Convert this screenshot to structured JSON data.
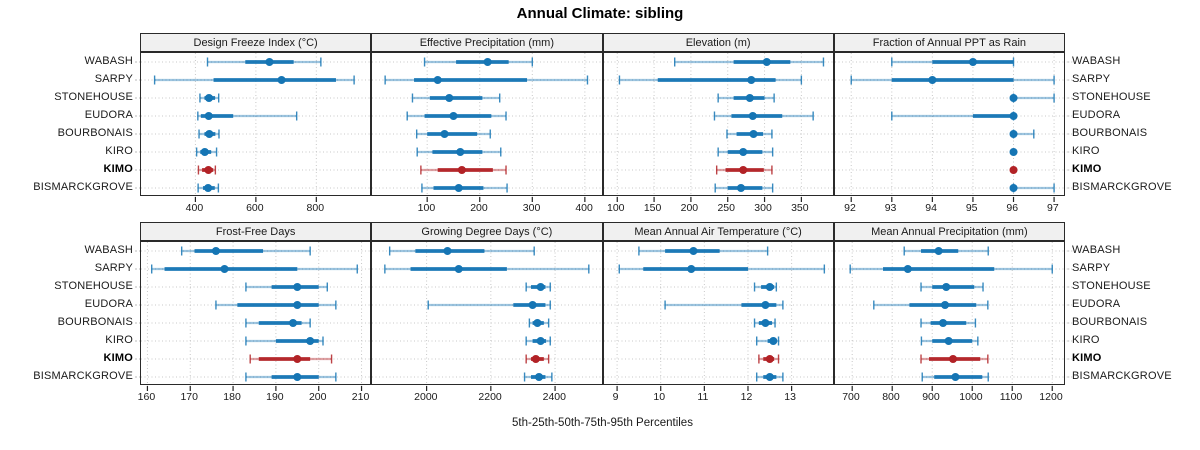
{
  "chart_data": {
    "type": "scatter",
    "subtype": "percentile-interval-dotplot",
    "title": "Annual Climate: sibling",
    "xlabel": "5th-25th-50th-75th-95th Percentiles",
    "percentile_labels": [
      "5th",
      "25th",
      "50th",
      "75th",
      "95th"
    ],
    "categories": [
      "WABASH",
      "SARPY",
      "STONEHOUSE",
      "EUDORA",
      "BOURBONAIS",
      "KIRO",
      "KIMO",
      "BISMARCKGROVE"
    ],
    "highlight_category": "KIMO",
    "legend_position": "none",
    "grid": "dotted",
    "colors": {
      "series": "#1575B4",
      "highlight": "#B22226",
      "strip_bg": "#F0F0F0",
      "grid_line": "#C8C8C8",
      "panel_border": "#2A2A2A",
      "text": "#1A1A1A"
    },
    "panels": [
      {
        "label": "Design Freeze Index (°C)",
        "row": 0,
        "xlim": [
          220,
          985
        ],
        "ticks": [
          400,
          600,
          800
        ],
        "values": {
          "WABASH": [
            440,
            565,
            645,
            725,
            815
          ],
          "SARPY": [
            265,
            460,
            685,
            865,
            925
          ],
          "STONEHOUSE": [
            415,
            430,
            445,
            465,
            477
          ],
          "EUDORA": [
            408,
            418,
            444,
            525,
            735
          ],
          "BOURBONAIS": [
            412,
            430,
            446,
            466,
            478
          ],
          "KIRO": [
            404,
            416,
            431,
            452,
            470
          ],
          "KIMO": [
            410,
            422,
            443,
            459,
            466
          ],
          "BISMARCKGROVE": [
            409,
            425,
            442,
            464,
            476
          ]
        }
      },
      {
        "label": "Effective Precipitation (mm)",
        "row": 0,
        "xlim": [
          -5,
          435
        ],
        "ticks": [
          100,
          200,
          300,
          400
        ],
        "values": {
          "WABASH": [
            95,
            155,
            215,
            255,
            300
          ],
          "SARPY": [
            20,
            75,
            120,
            290,
            405
          ],
          "STONEHOUSE": [
            72,
            105,
            142,
            205,
            238
          ],
          "EUDORA": [
            62,
            95,
            150,
            222,
            250
          ],
          "BOURBONAIS": [
            80,
            100,
            133,
            195,
            220
          ],
          "KIRO": [
            81,
            110,
            163,
            205,
            240
          ],
          "KIMO": [
            88,
            120,
            166,
            225,
            250
          ],
          "BISMARCKGROVE": [
            90,
            112,
            160,
            207,
            252
          ]
        }
      },
      {
        "label": "Elevation (m)",
        "row": 0,
        "xlim": [
          82,
          396
        ],
        "ticks": [
          100,
          150,
          200,
          250,
          300,
          350
        ],
        "values": {
          "WABASH": [
            178,
            258,
            303,
            335,
            380
          ],
          "SARPY": [
            103,
            155,
            282,
            315,
            350
          ],
          "STONEHOUSE": [
            237,
            258,
            280,
            300,
            313
          ],
          "EUDORA": [
            232,
            255,
            284,
            324,
            366
          ],
          "BOURBONAIS": [
            249,
            262,
            285,
            298,
            310
          ],
          "KIRO": [
            237,
            250,
            271,
            297,
            311
          ],
          "KIMO": [
            235,
            247,
            271,
            299,
            310
          ],
          "BISMARCKGROVE": [
            233,
            250,
            268,
            297,
            311
          ]
        }
      },
      {
        "label": "Fraction of Annual PPT as Rain",
        "row": 0,
        "xlim": [
          91.6,
          97.3
        ],
        "ticks": [
          92,
          93,
          94,
          95,
          96,
          97
        ],
        "values": {
          "WABASH": [
            93,
            94,
            95,
            96,
            96
          ],
          "SARPY": [
            92,
            93,
            94,
            96,
            97
          ],
          "STONEHOUSE": [
            96,
            96,
            96,
            96,
            97
          ],
          "EUDORA": [
            93,
            95,
            96,
            96,
            96
          ],
          "BOURBONAIS": [
            96,
            96,
            96,
            96,
            96.5
          ],
          "KIRO": [
            96,
            96,
            96,
            96,
            96
          ],
          "KIMO": [
            96,
            96,
            96,
            96,
            96
          ],
          "BISMARCKGROVE": [
            96,
            96,
            96,
            96,
            97
          ]
        }
      },
      {
        "label": "Frost-Free Days",
        "row": 1,
        "xlim": [
          158.5,
          212.5
        ],
        "ticks": [
          160,
          170,
          180,
          190,
          200,
          210
        ],
        "values": {
          "WABASH": [
            168,
            171,
            176,
            187,
            198
          ],
          "SARPY": [
            161,
            164,
            178,
            195,
            209
          ],
          "STONEHOUSE": [
            183,
            189,
            195,
            200,
            202
          ],
          "EUDORA": [
            176,
            181,
            195,
            200,
            204
          ],
          "BOURBONAIS": [
            183,
            186,
            194,
            196,
            198
          ],
          "KIRO": [
            183,
            190,
            198,
            200,
            201
          ],
          "KIMO": [
            184,
            186,
            195,
            198,
            203
          ],
          "BISMARCKGROVE": [
            183,
            189,
            195,
            200,
            204
          ]
        }
      },
      {
        "label": "Growing Degree Days (°C)",
        "row": 1,
        "xlim": [
          1830,
          2550
        ],
        "ticks": [
          2000,
          2200,
          2400
        ],
        "values": {
          "WABASH": [
            1885,
            1965,
            2065,
            2180,
            2335
          ],
          "SARPY": [
            1870,
            1950,
            2100,
            2250,
            2505
          ],
          "STONEHOUSE": [
            2310,
            2325,
            2355,
            2370,
            2385
          ],
          "EUDORA": [
            2005,
            2270,
            2330,
            2370,
            2385
          ],
          "BOURBONAIS": [
            2320,
            2330,
            2345,
            2365,
            2380
          ],
          "KIRO": [
            2310,
            2330,
            2355,
            2372,
            2385
          ],
          "KIMO": [
            2310,
            2325,
            2340,
            2365,
            2380
          ],
          "BISMARCKGROVE": [
            2305,
            2325,
            2350,
            2370,
            2390
          ]
        }
      },
      {
        "label": "Mean Annual Air Temperature (°C)",
        "row": 1,
        "xlim": [
          8.7,
          14.0
        ],
        "ticks": [
          9,
          10,
          11,
          12,
          13
        ],
        "values": {
          "WABASH": [
            9.5,
            10.1,
            10.75,
            11.35,
            12.45
          ],
          "SARPY": [
            9.05,
            9.6,
            10.7,
            12.0,
            13.75
          ],
          "STONEHOUSE": [
            12.15,
            12.3,
            12.5,
            12.6,
            12.65
          ],
          "EUDORA": [
            10.1,
            11.85,
            12.4,
            12.65,
            12.8
          ],
          "BOURBONAIS": [
            12.15,
            12.25,
            12.4,
            12.55,
            12.62
          ],
          "KIRO": [
            12.2,
            12.45,
            12.58,
            12.65,
            12.7
          ],
          "KIMO": [
            12.25,
            12.35,
            12.5,
            12.6,
            12.7
          ],
          "BISMARCKGROVE": [
            12.2,
            12.35,
            12.5,
            12.65,
            12.8
          ]
        }
      },
      {
        "label": "Mean Annual Precipitation (mm)",
        "row": 1,
        "xlim": [
          657,
          1235
        ],
        "ticks": [
          700,
          800,
          900,
          1000,
          1100,
          1200
        ],
        "values": {
          "WABASH": [
            830,
            872,
            916,
            965,
            1040
          ],
          "SARPY": [
            695,
            777,
            839,
            1055,
            1200
          ],
          "STONEHOUSE": [
            872,
            900,
            935,
            1005,
            1027
          ],
          "EUDORA": [
            754,
            843,
            932,
            1010,
            1039
          ],
          "BOURBONAIS": [
            872,
            896,
            927,
            985,
            1008
          ],
          "KIRO": [
            873,
            900,
            941,
            1000,
            1014
          ],
          "KIMO": [
            872,
            892,
            952,
            1020,
            1039
          ],
          "BISMARCKGROVE": [
            875,
            905,
            958,
            1025,
            1040
          ]
        }
      }
    ]
  }
}
